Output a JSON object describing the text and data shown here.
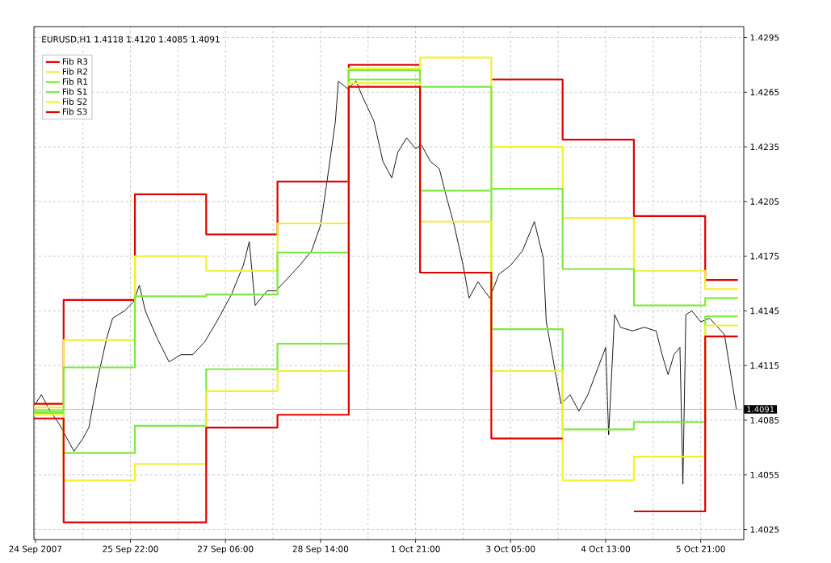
{
  "chart_data": {
    "type": "line",
    "title": "EURUSD,H1  1.4118 1.4120 1.4085 1.4091",
    "categories": [
      "24 Sep 2007",
      null,
      null,
      null,
      null,
      null,
      null,
      null,
      null,
      null,
      null,
      null,
      null,
      null,
      null,
      null,
      null,
      null,
      null,
      null,
      null,
      null,
      null,
      null,
      null,
      null,
      null,
      null,
      null,
      null,
      null,
      null,
      "25 Sep 22:00",
      null,
      null,
      null,
      null,
      null,
      null,
      null,
      null,
      null,
      null,
      null,
      null,
      null,
      null,
      null,
      null,
      null,
      null,
      null,
      null,
      null,
      null,
      null,
      null,
      null,
      null,
      null,
      null,
      null,
      null,
      null,
      "27 Sep 06:00",
      null,
      null,
      null,
      null,
      null,
      null,
      null,
      null,
      null,
      null,
      null,
      null,
      null,
      null,
      null,
      null,
      null,
      null,
      null,
      null,
      null,
      null,
      null,
      null,
      null,
      null,
      null,
      null,
      null,
      null,
      null,
      "28 Sep 14:00",
      null,
      null,
      null,
      null,
      null,
      null,
      null,
      null,
      null,
      null,
      null,
      null,
      null,
      null,
      null,
      null,
      null,
      null,
      null,
      null,
      null,
      null,
      null,
      null,
      null,
      null,
      null,
      null,
      null,
      null,
      null,
      "1 Oct 21:00",
      null,
      null,
      null,
      null,
      null,
      null,
      null,
      null,
      null,
      null,
      null,
      null,
      null,
      null,
      null,
      null,
      null,
      null,
      null,
      null,
      null,
      null,
      null,
      null,
      null,
      null,
      null,
      null,
      null,
      null,
      null,
      "3 Oct 05:00",
      null,
      null,
      null,
      null,
      null,
      null,
      null,
      null,
      null,
      null,
      null,
      null,
      null,
      null,
      null,
      null,
      null,
      null,
      null,
      null,
      null,
      null,
      null,
      null,
      null,
      null,
      null,
      null,
      null,
      null,
      null,
      "4 Oct 13:00",
      null,
      null,
      null,
      null,
      null,
      null,
      null,
      null,
      null,
      null,
      null,
      null,
      null,
      null,
      null,
      null,
      null,
      null,
      null,
      null,
      null,
      null,
      null,
      null,
      null,
      null,
      null,
      null,
      null,
      null,
      null,
      "5 Oct 21:00",
      null,
      null,
      null,
      null,
      null,
      null,
      null,
      null,
      null,
      null,
      null,
      null
    ],
    "ylim": [
      1.40195,
      1.4301
    ],
    "yticks": [
      1.4025,
      1.4055,
      1.4085,
      1.4115,
      1.4145,
      1.4175,
      1.4205,
      1.4235,
      1.4265,
      1.4295
    ],
    "grid": true,
    "line_style": "solid",
    "legend": "top left",
    "ref_lines": [
      {
        "axis": "y",
        "value": 1.4091,
        "label": "1.4091",
        "color": "#c0c0c0"
      }
    ],
    "series": [
      {
        "color": "#000000",
        "values": [
          1.4094,
          null,
          1.4099,
          null,
          null,
          1.409,
          null,
          null,
          1.4083,
          null,
          1.4077,
          null,
          null,
          1.4068,
          null,
          null,
          1.4075,
          null,
          1.4081,
          null,
          null,
          1.4108,
          null,
          null,
          1.413,
          null,
          1.4141,
          null,
          null,
          null,
          1.4145,
          null,
          null,
          1.415,
          null,
          1.4159,
          null,
          1.4145,
          null,
          null,
          null,
          1.413,
          null,
          null,
          null,
          1.4117,
          null,
          null,
          null,
          1.4121,
          null,
          null,
          null,
          1.4121,
          null,
          null,
          null,
          1.4128,
          null,
          null,
          null,
          1.4139,
          null,
          null,
          1.4148,
          null,
          1.4154,
          null,
          null,
          null,
          1.417,
          null,
          1.4183,
          null,
          1.4148,
          null,
          null,
          null,
          1.4156,
          null,
          null,
          1.4156,
          null,
          null,
          null,
          1.4163,
          null,
          null,
          null,
          1.417,
          null,
          null,
          null,
          1.4178,
          null,
          null,
          1.4192,
          null,
          1.4214,
          null,
          null,
          1.4249,
          1.4271,
          null,
          null,
          1.4267,
          null,
          null,
          1.4271,
          null,
          1.4263,
          null,
          null,
          null,
          1.4249,
          null,
          null,
          1.4227,
          null,
          null,
          1.4218,
          null,
          1.4232,
          null,
          null,
          1.424,
          null,
          null,
          1.4234,
          null,
          1.4236,
          null,
          null,
          1.4227,
          null,
          null,
          1.4223,
          null,
          1.421,
          null,
          null,
          1.4192,
          null,
          null,
          1.417,
          null,
          1.4152,
          null,
          null,
          1.4161,
          null,
          null,
          null,
          1.4152,
          null,
          null,
          1.4165,
          null,
          null,
          null,
          1.417,
          null,
          null,
          null,
          1.4178,
          null,
          null,
          null,
          1.4194,
          null,
          null,
          1.4174,
          1.4139,
          null,
          1.4121,
          null,
          null,
          1.4094,
          null,
          null,
          1.4099,
          null,
          null,
          1.409,
          null,
          null,
          1.4099,
          null,
          null,
          1.4112,
          null,
          null,
          1.4125,
          1.4077,
          null,
          1.4143,
          null,
          1.4136,
          null,
          null,
          null,
          1.4134,
          null,
          null,
          null,
          1.4136,
          null,
          null,
          null,
          1.4134,
          null,
          1.4121,
          null,
          1.411,
          null,
          1.4121,
          null,
          1.4125,
          1.405,
          1.4143,
          null,
          1.4145,
          null,
          null,
          1.4139,
          null,
          null,
          1.4141,
          null,
          null,
          null,
          null,
          1.4132,
          null,
          null,
          null,
          1.4091
        ]
      },
      {
        "name": "Fib R3",
        "type": "step",
        "color": "#e00000",
        "values": [
          1.4094,
          1.4094,
          1.4094,
          1.4094,
          1.4094,
          1.4094,
          1.4094,
          1.4094,
          1.4094,
          1.4094,
          1.4151,
          1.4151,
          1.4151,
          1.4151,
          1.4151,
          1.4151,
          1.4151,
          1.4151,
          1.4151,
          1.4151,
          1.4151,
          1.4151,
          1.4151,
          1.4151,
          1.4151,
          1.4151,
          1.4151,
          1.4151,
          1.4151,
          1.4151,
          1.4151,
          1.4151,
          1.4151,
          1.4151,
          1.4209,
          1.4209,
          1.4209,
          1.4209,
          1.4209,
          1.4209,
          1.4209,
          1.4209,
          1.4209,
          1.4209,
          1.4209,
          1.4209,
          1.4209,
          1.4209,
          1.4209,
          1.4209,
          1.4209,
          1.4209,
          1.4209,
          1.4209,
          1.4209,
          1.4209,
          1.4209,
          1.4209,
          1.4187,
          1.4187,
          1.4187,
          1.4187,
          1.4187,
          1.4187,
          1.4187,
          1.4187,
          1.4187,
          1.4187,
          1.4187,
          1.4187,
          1.4187,
          1.4187,
          1.4187,
          1.4187,
          1.4187,
          1.4187,
          1.4187,
          1.4187,
          1.4187,
          1.4187,
          1.4187,
          1.4187,
          1.4216,
          1.4216,
          1.4216,
          1.4216,
          1.4216,
          1.4216,
          1.4216,
          1.4216,
          1.4216,
          1.4216,
          1.4216,
          1.4216,
          1.4216,
          1.4216,
          1.4216,
          1.4216,
          1.4216,
          1.4216,
          1.4216,
          1.4216,
          1.4216,
          1.4216,
          1.4216,
          1.4216,
          1.428,
          1.428,
          1.428,
          1.428,
          1.428,
          1.428,
          1.428,
          1.428,
          1.428,
          1.428,
          1.428,
          1.428,
          1.428,
          1.428,
          1.428,
          1.428,
          1.428,
          1.428,
          1.428,
          1.428,
          1.428,
          1.428,
          1.428,
          1.428,
          null,
          null,
          null,
          null,
          null,
          null,
          null,
          null,
          null,
          null,
          null,
          null,
          null,
          null,
          null,
          null,
          null,
          null,
          null,
          null,
          null,
          null,
          null,
          null,
          1.4272,
          1.4272,
          1.4272,
          1.4272,
          1.4272,
          1.4272,
          1.4272,
          1.4272,
          1.4272,
          1.4272,
          1.4272,
          1.4272,
          1.4272,
          1.4272,
          1.4272,
          1.4272,
          1.4272,
          1.4272,
          1.4272,
          1.4272,
          1.4272,
          1.4272,
          1.4272,
          1.4272,
          1.4239,
          1.4239,
          1.4239,
          1.4239,
          1.4239,
          1.4239,
          1.4239,
          1.4239,
          1.4239,
          1.4239,
          1.4239,
          1.4239,
          1.4239,
          1.4239,
          1.4239,
          1.4239,
          1.4239,
          1.4239,
          1.4239,
          1.4239,
          1.4239,
          1.4239,
          1.4239,
          1.4239,
          1.4197,
          1.4197,
          1.4197,
          1.4197,
          1.4197,
          1.4197,
          1.4197,
          1.4197,
          1.4197,
          1.4197,
          1.4197,
          1.4197,
          1.4197,
          1.4197,
          1.4197,
          1.4197,
          1.4197,
          1.4197,
          1.4197,
          1.4197,
          1.4197,
          1.4197,
          1.4197,
          1.4197,
          1.4162,
          1.4162,
          1.4162,
          1.4162,
          1.4162,
          1.4162,
          1.4162,
          1.4162,
          1.4162,
          1.4162,
          1.4162
        ]
      },
      {
        "name": "Fib R2",
        "type": "step",
        "color": "#f4f030",
        "values": [
          1.4092,
          1.4092,
          1.4092,
          1.4092,
          1.4092,
          1.4092,
          1.4092,
          1.4092,
          1.4092,
          1.4092,
          1.4129,
          1.4129,
          1.4129,
          1.4129,
          1.4129,
          1.4129,
          1.4129,
          1.4129,
          1.4129,
          1.4129,
          1.4129,
          1.4129,
          1.4129,
          1.4129,
          1.4129,
          1.4129,
          1.4129,
          1.4129,
          1.4129,
          1.4129,
          1.4129,
          1.4129,
          1.4129,
          1.4129,
          1.4175,
          1.4175,
          1.4175,
          1.4175,
          1.4175,
          1.4175,
          1.4175,
          1.4175,
          1.4175,
          1.4175,
          1.4175,
          1.4175,
          1.4175,
          1.4175,
          1.4175,
          1.4175,
          1.4175,
          1.4175,
          1.4175,
          1.4175,
          1.4175,
          1.4175,
          1.4175,
          1.4175,
          1.4167,
          1.4167,
          1.4167,
          1.4167,
          1.4167,
          1.4167,
          1.4167,
          1.4167,
          1.4167,
          1.4167,
          1.4167,
          1.4167,
          1.4167,
          1.4167,
          1.4167,
          1.4167,
          1.4167,
          1.4167,
          1.4167,
          1.4167,
          1.4167,
          1.4167,
          1.4167,
          1.4167,
          1.4193,
          1.4193,
          1.4193,
          1.4193,
          1.4193,
          1.4193,
          1.4193,
          1.4193,
          1.4193,
          1.4193,
          1.4193,
          1.4193,
          1.4193,
          1.4193,
          1.4193,
          1.4193,
          1.4193,
          1.4193,
          1.4193,
          1.4193,
          1.4193,
          1.4193,
          1.4193,
          1.4193,
          1.4278,
          1.4278,
          1.4278,
          1.4278,
          1.4278,
          1.4278,
          1.4278,
          1.4278,
          1.4278,
          1.4278,
          1.4278,
          1.4278,
          1.4278,
          1.4278,
          1.4278,
          1.4278,
          1.4278,
          1.4278,
          1.4278,
          1.4278,
          1.4278,
          1.4278,
          1.4278,
          1.4278,
          1.4284,
          1.4284,
          1.4284,
          1.4284,
          1.4284,
          1.4284,
          1.4284,
          1.4284,
          1.4284,
          1.4284,
          1.4284,
          1.4284,
          1.4284,
          1.4284,
          1.4284,
          1.4284,
          1.4284,
          1.4284,
          1.4284,
          1.4284,
          1.4284,
          1.4284,
          1.4284,
          1.4284,
          1.4235,
          1.4235,
          1.4235,
          1.4235,
          1.4235,
          1.4235,
          1.4235,
          1.4235,
          1.4235,
          1.4235,
          1.4235,
          1.4235,
          1.4235,
          1.4235,
          1.4235,
          1.4235,
          1.4235,
          1.4235,
          1.4235,
          1.4235,
          1.4235,
          1.4235,
          1.4235,
          1.4235,
          1.4196,
          1.4196,
          1.4196,
          1.4196,
          1.4196,
          1.4196,
          1.4196,
          1.4196,
          1.4196,
          1.4196,
          1.4196,
          1.4196,
          1.4196,
          1.4196,
          1.4196,
          1.4196,
          1.4196,
          1.4196,
          1.4196,
          1.4196,
          1.4196,
          1.4196,
          1.4196,
          1.4196,
          1.4167,
          1.4167,
          1.4167,
          1.4167,
          1.4167,
          1.4167,
          1.4167,
          1.4167,
          1.4167,
          1.4167,
          1.4167,
          1.4167,
          1.4167,
          1.4167,
          1.4167,
          1.4167,
          1.4167,
          1.4167,
          1.4167,
          1.4167,
          1.4167,
          1.4167,
          1.4167,
          1.4167,
          1.4157,
          1.4157,
          1.4157,
          1.4157,
          1.4157,
          1.4157,
          1.4157,
          1.4157,
          1.4157,
          1.4157,
          1.4157
        ]
      },
      {
        "name": "Fib R1",
        "type": "step",
        "color": "#80e840",
        "values": [
          1.409,
          1.409,
          1.409,
          1.409,
          1.409,
          1.409,
          1.409,
          1.409,
          1.409,
          1.409,
          1.4114,
          1.4114,
          1.4114,
          1.4114,
          1.4114,
          1.4114,
          1.4114,
          1.4114,
          1.4114,
          1.4114,
          1.4114,
          1.4114,
          1.4114,
          1.4114,
          1.4114,
          1.4114,
          1.4114,
          1.4114,
          1.4114,
          1.4114,
          1.4114,
          1.4114,
          1.4114,
          1.4114,
          1.4153,
          1.4153,
          1.4153,
          1.4153,
          1.4153,
          1.4153,
          1.4153,
          1.4153,
          1.4153,
          1.4153,
          1.4153,
          1.4153,
          1.4153,
          1.4153,
          1.4153,
          1.4153,
          1.4153,
          1.4153,
          1.4153,
          1.4153,
          1.4153,
          1.4153,
          1.4153,
          1.4153,
          1.4154,
          1.4154,
          1.4154,
          1.4154,
          1.4154,
          1.4154,
          1.4154,
          1.4154,
          1.4154,
          1.4154,
          1.4154,
          1.4154,
          1.4154,
          1.4154,
          1.4154,
          1.4154,
          1.4154,
          1.4154,
          1.4154,
          1.4154,
          1.4154,
          1.4154,
          1.4154,
          1.4154,
          1.4177,
          1.4177,
          1.4177,
          1.4177,
          1.4177,
          1.4177,
          1.4177,
          1.4177,
          1.4177,
          1.4177,
          1.4177,
          1.4177,
          1.4177,
          1.4177,
          1.4177,
          1.4177,
          1.4177,
          1.4177,
          1.4177,
          1.4177,
          1.4177,
          1.4177,
          1.4177,
          1.4177,
          1.4277,
          1.4277,
          1.4277,
          1.4277,
          1.4277,
          1.4277,
          1.4277,
          1.4277,
          1.4277,
          1.4277,
          1.4277,
          1.4277,
          1.4277,
          1.4277,
          1.4277,
          1.4277,
          1.4277,
          1.4277,
          1.4277,
          1.4277,
          1.4277,
          1.4277,
          1.4277,
          1.4277,
          1.4268,
          1.4268,
          1.4268,
          1.4268,
          1.4268,
          1.4268,
          1.4268,
          1.4268,
          1.4268,
          1.4268,
          1.4268,
          1.4268,
          1.4268,
          1.4268,
          1.4268,
          1.4268,
          1.4268,
          1.4268,
          1.4268,
          1.4268,
          1.4268,
          1.4268,
          1.4268,
          1.4268,
          1.4212,
          1.4212,
          1.4212,
          1.4212,
          1.4212,
          1.4212,
          1.4212,
          1.4212,
          1.4212,
          1.4212,
          1.4212,
          1.4212,
          1.4212,
          1.4212,
          1.4212,
          1.4212,
          1.4212,
          1.4212,
          1.4212,
          1.4212,
          1.4212,
          1.4212,
          1.4212,
          1.4212,
          1.4168,
          1.4168,
          1.4168,
          1.4168,
          1.4168,
          1.4168,
          1.4168,
          1.4168,
          1.4168,
          1.4168,
          1.4168,
          1.4168,
          1.4168,
          1.4168,
          1.4168,
          1.4168,
          1.4168,
          1.4168,
          1.4168,
          1.4168,
          1.4168,
          1.4168,
          1.4168,
          1.4168,
          1.4148,
          1.4148,
          1.4148,
          1.4148,
          1.4148,
          1.4148,
          1.4148,
          1.4148,
          1.4148,
          1.4148,
          1.4148,
          1.4148,
          1.4148,
          1.4148,
          1.4148,
          1.4148,
          1.4148,
          1.4148,
          1.4148,
          1.4148,
          1.4148,
          1.4148,
          1.4148,
          1.4148,
          1.4152,
          1.4152,
          1.4152,
          1.4152,
          1.4152,
          1.4152,
          1.4152,
          1.4152,
          1.4152,
          1.4152,
          1.4152
        ]
      },
      {
        "name": "Fib S1",
        "type": "step",
        "color": "#80e840",
        "values": [
          1.4089,
          1.4089,
          1.4089,
          1.4089,
          1.4089,
          1.4089,
          1.4089,
          1.4089,
          1.4089,
          1.4089,
          1.4067,
          1.4067,
          1.4067,
          1.4067,
          1.4067,
          1.4067,
          1.4067,
          1.4067,
          1.4067,
          1.4067,
          1.4067,
          1.4067,
          1.4067,
          1.4067,
          1.4067,
          1.4067,
          1.4067,
          1.4067,
          1.4067,
          1.4067,
          1.4067,
          1.4067,
          1.4067,
          1.4067,
          1.4082,
          1.4082,
          1.4082,
          1.4082,
          1.4082,
          1.4082,
          1.4082,
          1.4082,
          1.4082,
          1.4082,
          1.4082,
          1.4082,
          1.4082,
          1.4082,
          1.4082,
          1.4082,
          1.4082,
          1.4082,
          1.4082,
          1.4082,
          1.4082,
          1.4082,
          1.4082,
          1.4082,
          1.4113,
          1.4113,
          1.4113,
          1.4113,
          1.4113,
          1.4113,
          1.4113,
          1.4113,
          1.4113,
          1.4113,
          1.4113,
          1.4113,
          1.4113,
          1.4113,
          1.4113,
          1.4113,
          1.4113,
          1.4113,
          1.4113,
          1.4113,
          1.4113,
          1.4113,
          1.4113,
          1.4113,
          1.4127,
          1.4127,
          1.4127,
          1.4127,
          1.4127,
          1.4127,
          1.4127,
          1.4127,
          1.4127,
          1.4127,
          1.4127,
          1.4127,
          1.4127,
          1.4127,
          1.4127,
          1.4127,
          1.4127,
          1.4127,
          1.4127,
          1.4127,
          1.4127,
          1.4127,
          1.4127,
          1.4127,
          1.4272,
          1.4272,
          1.4272,
          1.4272,
          1.4272,
          1.4272,
          1.4272,
          1.4272,
          1.4272,
          1.4272,
          1.4272,
          1.4272,
          1.4272,
          1.4272,
          1.4272,
          1.4272,
          1.4272,
          1.4272,
          1.4272,
          1.4272,
          1.4272,
          1.4272,
          1.4272,
          1.4272,
          1.4211,
          1.4211,
          1.4211,
          1.4211,
          1.4211,
          1.4211,
          1.4211,
          1.4211,
          1.4211,
          1.4211,
          1.4211,
          1.4211,
          1.4211,
          1.4211,
          1.4211,
          1.4211,
          1.4211,
          1.4211,
          1.4211,
          1.4211,
          1.4211,
          1.4211,
          1.4211,
          1.4211,
          1.4135,
          1.4135,
          1.4135,
          1.4135,
          1.4135,
          1.4135,
          1.4135,
          1.4135,
          1.4135,
          1.4135,
          1.4135,
          1.4135,
          1.4135,
          1.4135,
          1.4135,
          1.4135,
          1.4135,
          1.4135,
          1.4135,
          1.4135,
          1.4135,
          1.4135,
          1.4135,
          1.4135,
          1.408,
          1.408,
          1.408,
          1.408,
          1.408,
          1.408,
          1.408,
          1.408,
          1.408,
          1.408,
          1.408,
          1.408,
          1.408,
          1.408,
          1.408,
          1.408,
          1.408,
          1.408,
          1.408,
          1.408,
          1.408,
          1.408,
          1.408,
          1.408,
          1.4084,
          1.4084,
          1.4084,
          1.4084,
          1.4084,
          1.4084,
          1.4084,
          1.4084,
          1.4084,
          1.4084,
          1.4084,
          1.4084,
          1.4084,
          1.4084,
          1.4084,
          1.4084,
          1.4084,
          1.4084,
          1.4084,
          1.4084,
          1.4084,
          1.4084,
          1.4084,
          1.4084,
          1.4142,
          1.4142,
          1.4142,
          1.4142,
          1.4142,
          1.4142,
          1.4142,
          1.4142,
          1.4142,
          1.4142,
          1.4142
        ]
      },
      {
        "name": "Fib S2",
        "type": "step",
        "color": "#f4f030",
        "values": [
          1.4088,
          1.4088,
          1.4088,
          1.4088,
          1.4088,
          1.4088,
          1.4088,
          1.4088,
          1.4088,
          1.4088,
          1.4052,
          1.4052,
          1.4052,
          1.4052,
          1.4052,
          1.4052,
          1.4052,
          1.4052,
          1.4052,
          1.4052,
          1.4052,
          1.4052,
          1.4052,
          1.4052,
          1.4052,
          1.4052,
          1.4052,
          1.4052,
          1.4052,
          1.4052,
          1.4052,
          1.4052,
          1.4052,
          1.4052,
          1.4061,
          1.4061,
          1.4061,
          1.4061,
          1.4061,
          1.4061,
          1.4061,
          1.4061,
          1.4061,
          1.4061,
          1.4061,
          1.4061,
          1.4061,
          1.4061,
          1.4061,
          1.4061,
          1.4061,
          1.4061,
          1.4061,
          1.4061,
          1.4061,
          1.4061,
          1.4061,
          1.4061,
          1.4101,
          1.4101,
          1.4101,
          1.4101,
          1.4101,
          1.4101,
          1.4101,
          1.4101,
          1.4101,
          1.4101,
          1.4101,
          1.4101,
          1.4101,
          1.4101,
          1.4101,
          1.4101,
          1.4101,
          1.4101,
          1.4101,
          1.4101,
          1.4101,
          1.4101,
          1.4101,
          1.4101,
          1.4112,
          1.4112,
          1.4112,
          1.4112,
          1.4112,
          1.4112,
          1.4112,
          1.4112,
          1.4112,
          1.4112,
          1.4112,
          1.4112,
          1.4112,
          1.4112,
          1.4112,
          1.4112,
          1.4112,
          1.4112,
          1.4112,
          1.4112,
          1.4112,
          1.4112,
          1.4112,
          1.4112,
          1.427,
          1.427,
          1.427,
          1.427,
          1.427,
          1.427,
          1.427,
          1.427,
          1.427,
          1.427,
          1.427,
          1.427,
          1.427,
          1.427,
          1.427,
          1.427,
          1.427,
          1.427,
          1.427,
          1.427,
          1.427,
          1.427,
          1.427,
          1.427,
          1.4194,
          1.4194,
          1.4194,
          1.4194,
          1.4194,
          1.4194,
          1.4194,
          1.4194,
          1.4194,
          1.4194,
          1.4194,
          1.4194,
          1.4194,
          1.4194,
          1.4194,
          1.4194,
          1.4194,
          1.4194,
          1.4194,
          1.4194,
          1.4194,
          1.4194,
          1.4194,
          1.4194,
          1.4112,
          1.4112,
          1.4112,
          1.4112,
          1.4112,
          1.4112,
          1.4112,
          1.4112,
          1.4112,
          1.4112,
          1.4112,
          1.4112,
          1.4112,
          1.4112,
          1.4112,
          1.4112,
          1.4112,
          1.4112,
          1.4112,
          1.4112,
          1.4112,
          1.4112,
          1.4112,
          1.4112,
          1.4052,
          1.4052,
          1.4052,
          1.4052,
          1.4052,
          1.4052,
          1.4052,
          1.4052,
          1.4052,
          1.4052,
          1.4052,
          1.4052,
          1.4052,
          1.4052,
          1.4052,
          1.4052,
          1.4052,
          1.4052,
          1.4052,
          1.4052,
          1.4052,
          1.4052,
          1.4052,
          1.4052,
          1.4065,
          1.4065,
          1.4065,
          1.4065,
          1.4065,
          1.4065,
          1.4065,
          1.4065,
          1.4065,
          1.4065,
          1.4065,
          1.4065,
          1.4065,
          1.4065,
          1.4065,
          1.4065,
          1.4065,
          1.4065,
          1.4065,
          1.4065,
          1.4065,
          1.4065,
          1.4065,
          1.4065,
          1.4137,
          1.4137,
          1.4137,
          1.4137,
          1.4137,
          1.4137,
          1.4137,
          1.4137,
          1.4137,
          1.4137,
          1.4137
        ]
      },
      {
        "name": "Fib S3",
        "type": "step",
        "color": "#e00000",
        "values": [
          1.4086,
          1.4086,
          1.4086,
          1.4086,
          1.4086,
          1.4086,
          1.4086,
          1.4086,
          1.4086,
          1.4086,
          1.4029,
          1.4029,
          1.4029,
          1.4029,
          1.4029,
          1.4029,
          1.4029,
          1.4029,
          1.4029,
          1.4029,
          1.4029,
          1.4029,
          1.4029,
          1.4029,
          1.4029,
          1.4029,
          1.4029,
          1.4029,
          1.4029,
          1.4029,
          1.4029,
          1.4029,
          1.4029,
          1.4029,
          1.4029,
          1.4029,
          1.4029,
          1.4029,
          1.4029,
          1.4029,
          1.4029,
          1.4029,
          1.4029,
          1.4029,
          1.4029,
          1.4029,
          1.4029,
          1.4029,
          1.4029,
          1.4029,
          1.4029,
          1.4029,
          1.4029,
          1.4029,
          1.4029,
          1.4029,
          1.4029,
          1.4029,
          1.4081,
          1.4081,
          1.4081,
          1.4081,
          1.4081,
          1.4081,
          1.4081,
          1.4081,
          1.4081,
          1.4081,
          1.4081,
          1.4081,
          1.4081,
          1.4081,
          1.4081,
          1.4081,
          1.4081,
          1.4081,
          1.4081,
          1.4081,
          1.4081,
          1.4081,
          1.4081,
          1.4081,
          1.4088,
          1.4088,
          1.4088,
          1.4088,
          1.4088,
          1.4088,
          1.4088,
          1.4088,
          1.4088,
          1.4088,
          1.4088,
          1.4088,
          1.4088,
          1.4088,
          1.4088,
          1.4088,
          1.4088,
          1.4088,
          1.4088,
          1.4088,
          1.4088,
          1.4088,
          1.4088,
          1.4088,
          1.4268,
          1.4268,
          1.4268,
          1.4268,
          1.4268,
          1.4268,
          1.4268,
          1.4268,
          1.4268,
          1.4268,
          1.4268,
          1.4268,
          1.4268,
          1.4268,
          1.4268,
          1.4268,
          1.4268,
          1.4268,
          1.4268,
          1.4268,
          1.4268,
          1.4268,
          1.4268,
          1.4268,
          1.4166,
          1.4166,
          1.4166,
          1.4166,
          1.4166,
          1.4166,
          1.4166,
          1.4166,
          1.4166,
          1.4166,
          1.4166,
          1.4166,
          1.4166,
          1.4166,
          1.4166,
          1.4166,
          1.4166,
          1.4166,
          1.4166,
          1.4166,
          1.4166,
          1.4166,
          1.4166,
          1.4166,
          1.4075,
          1.4075,
          1.4075,
          1.4075,
          1.4075,
          1.4075,
          1.4075,
          1.4075,
          1.4075,
          1.4075,
          1.4075,
          1.4075,
          1.4075,
          1.4075,
          1.4075,
          1.4075,
          1.4075,
          1.4075,
          1.4075,
          1.4075,
          1.4075,
          1.4075,
          1.4075,
          1.4075,
          null,
          null,
          null,
          null,
          null,
          null,
          null,
          null,
          null,
          null,
          null,
          null,
          null,
          null,
          null,
          null,
          null,
          null,
          null,
          null,
          null,
          null,
          null,
          null,
          1.4035,
          1.4035,
          1.4035,
          1.4035,
          1.4035,
          1.4035,
          1.4035,
          1.4035,
          1.4035,
          1.4035,
          1.4035,
          1.4035,
          1.4035,
          1.4035,
          1.4035,
          1.4035,
          1.4035,
          1.4035,
          1.4035,
          1.4035,
          1.4035,
          1.4035,
          1.4035,
          1.4035,
          1.4131,
          1.4131,
          1.4131,
          1.4131,
          1.4131,
          1.4131,
          1.4131,
          1.4131,
          1.4131,
          1.4131,
          1.4131
        ]
      }
    ]
  }
}
